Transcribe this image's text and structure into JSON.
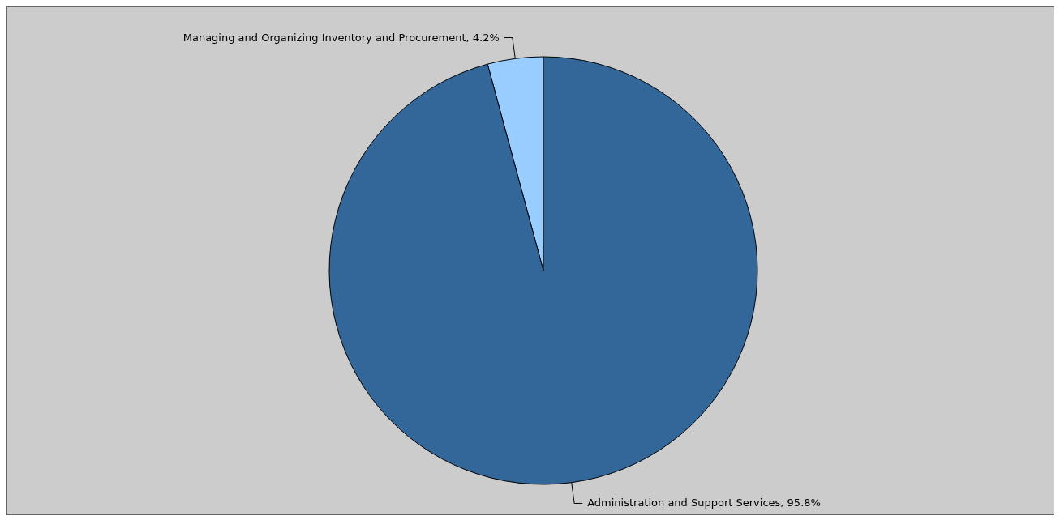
{
  "chart_data": {
    "type": "pie",
    "categories": [
      "Managing and Organizing Inventory and Procurement",
      "Administration and Support Services"
    ],
    "values": [
      4.2,
      95.8
    ],
    "colors": [
      "#99ccff",
      "#336699"
    ],
    "value_labels": [
      "4.2%",
      "95.8%"
    ]
  }
}
